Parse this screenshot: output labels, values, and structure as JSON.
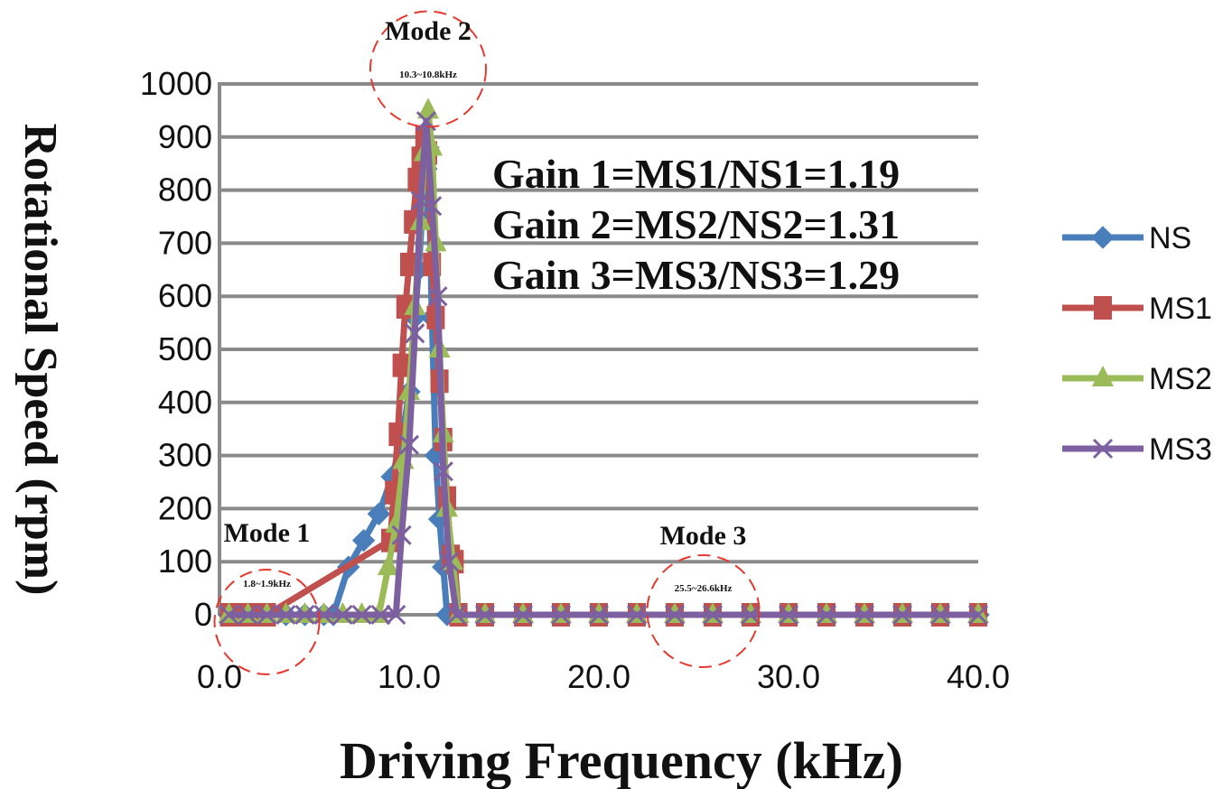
{
  "chart_data": {
    "type": "line",
    "xlabel": "Driving Frequency (kHz)",
    "ylabel": "Rotational Speed (rpm)",
    "xlim": [
      0,
      40
    ],
    "ylim": [
      0,
      1000
    ],
    "x_ticks": [
      "0.0",
      "10.0",
      "20.0",
      "30.0",
      "40.0"
    ],
    "y_ticks": [
      "0",
      "100",
      "200",
      "300",
      "400",
      "500",
      "600",
      "700",
      "800",
      "900",
      "1000"
    ],
    "grid": "horizontal",
    "legend_position": "right",
    "series": [
      {
        "name": "NS",
        "color": "#4a7ebb",
        "marker": "diamond",
        "points": [
          [
            0.5,
            0
          ],
          [
            1.5,
            0
          ],
          [
            2.5,
            0
          ],
          [
            3.5,
            0
          ],
          [
            4.5,
            0
          ],
          [
            5.5,
            0
          ],
          [
            6.0,
            0
          ],
          [
            6.8,
            90
          ],
          [
            7.6,
            140
          ],
          [
            8.4,
            190
          ],
          [
            9.1,
            260
          ],
          [
            9.6,
            330
          ],
          [
            10.0,
            420
          ],
          [
            10.3,
            560
          ],
          [
            10.5,
            650
          ],
          [
            10.7,
            760
          ],
          [
            10.9,
            840
          ],
          [
            11.0,
            880
          ],
          [
            11.2,
            560
          ],
          [
            11.4,
            300
          ],
          [
            11.6,
            180
          ],
          [
            11.8,
            90
          ],
          [
            12.0,
            0
          ],
          [
            14,
            0
          ],
          [
            16,
            0
          ],
          [
            18,
            0
          ],
          [
            20,
            0
          ],
          [
            22,
            0
          ],
          [
            24,
            0
          ],
          [
            26,
            0
          ],
          [
            28,
            0
          ],
          [
            30,
            0
          ],
          [
            32,
            0
          ],
          [
            34,
            0
          ],
          [
            36,
            0
          ],
          [
            38,
            0
          ],
          [
            40,
            0
          ]
        ]
      },
      {
        "name": "MS1",
        "color": "#c0504d",
        "marker": "square",
        "points": [
          [
            0.5,
            0
          ],
          [
            1.0,
            0
          ],
          [
            1.5,
            0
          ],
          [
            2.0,
            0
          ],
          [
            2.5,
            0
          ],
          [
            9.0,
            140
          ],
          [
            9.2,
            230
          ],
          [
            9.4,
            340
          ],
          [
            9.6,
            470
          ],
          [
            9.8,
            580
          ],
          [
            10.0,
            660
          ],
          [
            10.2,
            740
          ],
          [
            10.4,
            820
          ],
          [
            10.6,
            860
          ],
          [
            10.8,
            900
          ],
          [
            11.0,
            870
          ],
          [
            11.2,
            660
          ],
          [
            11.4,
            560
          ],
          [
            11.6,
            440
          ],
          [
            11.8,
            330
          ],
          [
            12.0,
            220
          ],
          [
            12.2,
            110
          ],
          [
            12.4,
            100
          ],
          [
            12.6,
            0
          ],
          [
            14,
            0
          ],
          [
            16,
            0
          ],
          [
            18,
            0
          ],
          [
            20,
            0
          ],
          [
            22,
            0
          ],
          [
            24,
            0
          ],
          [
            26,
            0
          ],
          [
            28,
            0
          ],
          [
            30,
            0
          ],
          [
            32,
            0
          ],
          [
            34,
            0
          ],
          [
            36,
            0
          ],
          [
            38,
            0
          ],
          [
            40,
            0
          ]
        ]
      },
      {
        "name": "MS2",
        "color": "#9bbb59",
        "marker": "triangle",
        "points": [
          [
            0.5,
            0
          ],
          [
            1.5,
            0
          ],
          [
            2.5,
            0
          ],
          [
            3.5,
            0
          ],
          [
            4.5,
            0
          ],
          [
            5.5,
            0
          ],
          [
            6.5,
            0
          ],
          [
            7.5,
            0
          ],
          [
            8.4,
            0
          ],
          [
            8.9,
            90
          ],
          [
            9.3,
            170
          ],
          [
            9.7,
            290
          ],
          [
            10.0,
            420
          ],
          [
            10.3,
            580
          ],
          [
            10.6,
            740
          ],
          [
            10.8,
            870
          ],
          [
            11.0,
            950
          ],
          [
            11.2,
            880
          ],
          [
            11.4,
            700
          ],
          [
            11.6,
            500
          ],
          [
            11.8,
            340
          ],
          [
            12.0,
            200
          ],
          [
            12.3,
            100
          ],
          [
            12.6,
            0
          ],
          [
            14,
            0
          ],
          [
            16,
            0
          ],
          [
            18,
            0
          ],
          [
            20,
            0
          ],
          [
            22,
            0
          ],
          [
            24,
            0
          ],
          [
            26,
            0
          ],
          [
            28,
            0
          ],
          [
            30,
            0
          ],
          [
            32,
            0
          ],
          [
            34,
            0
          ],
          [
            36,
            0
          ],
          [
            38,
            0
          ],
          [
            40,
            0
          ]
        ]
      },
      {
        "name": "MS3",
        "color": "#7d60a0",
        "marker": "x",
        "points": [
          [
            0.5,
            0
          ],
          [
            1.5,
            0
          ],
          [
            2.5,
            0
          ],
          [
            3.5,
            0
          ],
          [
            4.5,
            0
          ],
          [
            5.5,
            0
          ],
          [
            6.5,
            0
          ],
          [
            7.5,
            0
          ],
          [
            8.5,
            0
          ],
          [
            9.3,
            0
          ],
          [
            9.6,
            150
          ],
          [
            10.0,
            320
          ],
          [
            10.3,
            530
          ],
          [
            10.6,
            780
          ],
          [
            10.9,
            930
          ],
          [
            11.2,
            770
          ],
          [
            11.5,
            600
          ],
          [
            11.8,
            270
          ],
          [
            12.1,
            100
          ],
          [
            12.5,
            0
          ],
          [
            14,
            0
          ],
          [
            16,
            0
          ],
          [
            18,
            0
          ],
          [
            20,
            0
          ],
          [
            22,
            0
          ],
          [
            24,
            0
          ],
          [
            26,
            0
          ],
          [
            28,
            0
          ],
          [
            30,
            0
          ],
          [
            32,
            0
          ],
          [
            34,
            0
          ],
          [
            36,
            0
          ],
          [
            38,
            0
          ],
          [
            40,
            0
          ]
        ]
      }
    ],
    "annotations": {
      "gain_lines": [
        "Gain 1=MS1/NS1=1.19",
        "Gain 2=MS2/NS2=1.31",
        "Gain 3=MS3/NS3=1.29"
      ],
      "modes": [
        {
          "label": "Mode 1",
          "range": "1.8~1.9kHz",
          "x": 2.5,
          "y": 0
        },
        {
          "label": "Mode 2",
          "range": "10.3~10.8kHz",
          "x": 11.0,
          "y": 960
        },
        {
          "label": "Mode 3",
          "range": "25.5~26.6kHz",
          "x": 25.5,
          "y": 0
        }
      ],
      "circle_color": "#e8382d"
    }
  }
}
